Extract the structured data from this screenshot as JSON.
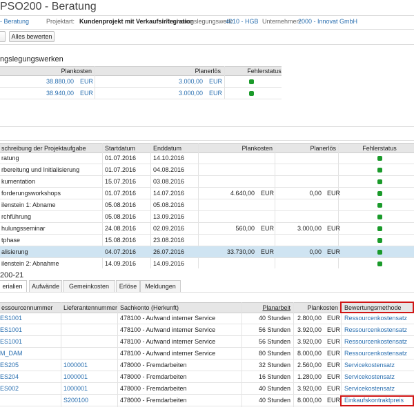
{
  "header": {
    "title": "PSO200 - Beratung",
    "breadcrumb": "- Beratung",
    "fields": [
      {
        "label": "Projektart:",
        "value": "Kundenprojekt mit Verkaufsintegration"
      },
      {
        "label": "Rechnungslegungswerk:",
        "value": "4010 - HGB"
      },
      {
        "label": "Unternehmen:",
        "value": "2000 - Innovat GmbH"
      }
    ]
  },
  "toolbar": {
    "button": "Alles bewerten"
  },
  "ledgers": {
    "title": "ngslegungswerken",
    "columns": [
      "Plankosten",
      "Planerlös",
      "Fehlerstatus"
    ],
    "rows": [
      {
        "cost": "38.880,00",
        "cost_currency": "EUR",
        "revenue": "3.000,00",
        "revenue_currency": "EUR"
      },
      {
        "cost": "38.940,00",
        "cost_currency": "EUR",
        "revenue": "3.000,00",
        "revenue_currency": "EUR"
      }
    ]
  },
  "tasks": {
    "columns": [
      "schreibung der Projektaufgabe",
      "Startdatum",
      "Enddatum",
      "Plankosten",
      "Planerlös",
      "Fehlerstatus"
    ],
    "selected_row": 8,
    "rows": [
      {
        "name": "ratung",
        "start": "01.07.2016",
        "end": "14.10.2016"
      },
      {
        "name": "rbereitung und Initialisierung",
        "start": "01.07.2016",
        "end": "04.08.2016"
      },
      {
        "name": "kumentation",
        "start": "15.07.2016",
        "end": "03.08.2016"
      },
      {
        "name": "forderungsworkshops",
        "start": "01.07.2016",
        "end": "14.07.2016",
        "cost": "4.640,00",
        "cost_currency": "EUR",
        "revenue": "0,00",
        "revenue_currency": "EUR"
      },
      {
        "name": "ilenstein 1: Abname",
        "start": "05.08.2016",
        "end": "05.08.2016"
      },
      {
        "name": "rchführung",
        "start": "05.08.2016",
        "end": "13.09.2016"
      },
      {
        "name": "hulungsseminar",
        "start": "24.08.2016",
        "end": "02.09.2016",
        "cost": "560,00",
        "cost_currency": "EUR",
        "revenue": "3.000,00",
        "revenue_currency": "EUR"
      },
      {
        "name": "tphase",
        "start": "15.08.2016",
        "end": "23.08.2016"
      },
      {
        "name": "alisierung",
        "start": "04.07.2016",
        "end": "26.07.2016",
        "cost": "33.730,00",
        "cost_currency": "EUR",
        "revenue": "0,00",
        "revenue_currency": "EUR"
      },
      {
        "name": "ilenstein 2: Abnahme",
        "start": "14.09.2016",
        "end": "14.09.2016"
      }
    ]
  },
  "detail": {
    "title": "200-21",
    "tabs": [
      "erialien",
      "Aufwände",
      "Gemeinkosten",
      "Erlöse",
      "Meldungen"
    ],
    "columns": [
      "essourcennummer",
      "Lieferantennummer",
      "Sachkonto (Herkunft)",
      "Planarbeit",
      "Plankosten",
      "Bewertungsmethode"
    ],
    "rows": [
      {
        "resource": "ES1001",
        "account": "478100 - Aufwand interner Service",
        "work": "40 Stunden",
        "cost": "2.800,00",
        "currency": "EUR",
        "method": "Ressourcenkostensatz"
      },
      {
        "resource": "ES1001",
        "account": "478100 - Aufwand interner Service",
        "work": "56 Stunden",
        "cost": "3.920,00",
        "currency": "EUR",
        "method": "Ressourcenkostensatz"
      },
      {
        "resource": "ES1001",
        "account": "478100 - Aufwand interner Service",
        "work": "56 Stunden",
        "cost": "3.920,00",
        "currency": "EUR",
        "method": "Ressourcenkostensatz"
      },
      {
        "resource": "M_DAM",
        "account": "478100 - Aufwand interner Service",
        "work": "80 Stunden",
        "cost": "8.000,00",
        "currency": "EUR",
        "method": "Ressourcenkostensatz"
      },
      {
        "resource": "ES205",
        "supplier": "1000001",
        "account": "478000 - Fremdarbeiten",
        "work": "32 Stunden",
        "cost": "2.560,00",
        "currency": "EUR",
        "method": "Servicekostensatz"
      },
      {
        "resource": "ES204",
        "supplier": "1000001",
        "account": "478000 - Fremdarbeiten",
        "work": "16 Stunden",
        "cost": "1.280,00",
        "currency": "EUR",
        "method": "Servicekostensatz"
      },
      {
        "resource": "ES002",
        "supplier": "1000001",
        "account": "478000 - Fremdarbeiten",
        "work": "40 Stunden",
        "cost": "3.920,00",
        "currency": "EUR",
        "method": "Servicekostensatz"
      },
      {
        "supplier": "S200100",
        "account": "478000 - Fremdarbeiten",
        "work": "40 Stunden",
        "cost": "8.000,00",
        "currency": "EUR",
        "method": "Einkaufskontraktpreis"
      }
    ]
  }
}
